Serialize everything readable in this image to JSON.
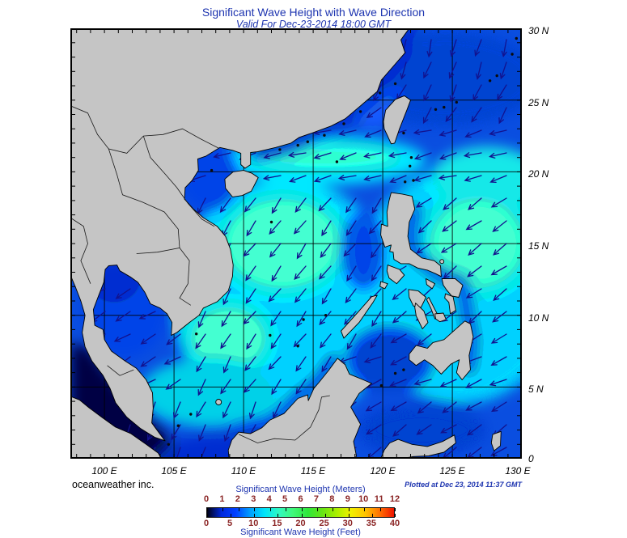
{
  "title": {
    "main": "Significant Wave Height with Wave Direction",
    "valid": "Valid For Dec-23-2014 18:00 GMT"
  },
  "axes": {
    "lon": [
      "100 E",
      "105 E",
      "110 E",
      "115 E",
      "120 E",
      "125 E",
      "130 E"
    ],
    "lat": [
      "30 N",
      "25 N",
      "20 N",
      "15 N",
      "10 N",
      "5 N",
      "0"
    ]
  },
  "branding": {
    "name": "oceanweather inc."
  },
  "plotted": "Plotted at Dec 23, 2014 11:37 GMT",
  "legend": {
    "meters_title": "Significant Wave Height (Meters)",
    "feet_title": "Significant Wave Height (Feet)",
    "meters": [
      "0",
      "1",
      "2",
      "3",
      "4",
      "5",
      "6",
      "7",
      "8",
      "9",
      "10",
      "11",
      "12"
    ],
    "feet": [
      "0",
      "5",
      "10",
      "15",
      "20",
      "25",
      "30",
      "35",
      "40"
    ]
  },
  "colors": {
    "title_text": "#1e35b0",
    "scale_numbers": "#8b2525",
    "land": "#c5c5c5",
    "sea_base": "#0a4ee0",
    "arrow": "#12128e",
    "colorbar_stops": [
      "#000014",
      "#0028dc",
      "#0040ff",
      "#00a0ff",
      "#00e4fa",
      "#30f8c0",
      "#40f878",
      "#2ee83c",
      "#66e414",
      "#a8f000",
      "#f2f000",
      "#ffc400",
      "#ff7000",
      "#ee1400"
    ]
  }
}
